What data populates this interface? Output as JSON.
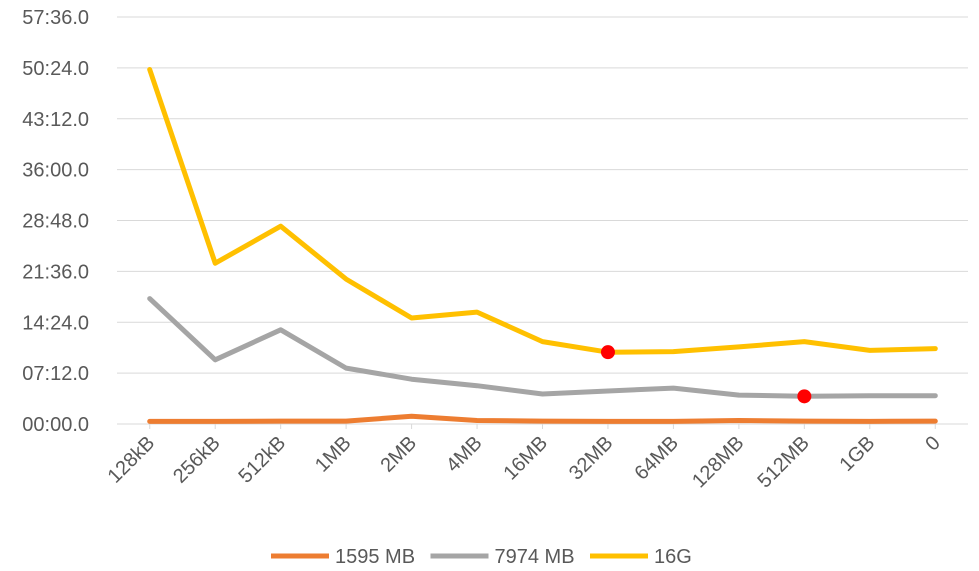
{
  "chart_data": {
    "type": "line",
    "title": "",
    "xlabel": "",
    "ylabel": "",
    "categories": [
      "128kB",
      "256kB",
      "512kB",
      "1MB",
      "2MB",
      "4MB",
      "16MB",
      "32MB",
      "64MB",
      "128MB",
      "512MB",
      "1GB",
      "0"
    ],
    "y_tick_labels": [
      "00:00.0",
      "07:12.0",
      "14:24.0",
      "21:36.0",
      "28:48.0",
      "36:00.0",
      "43:12.0",
      "50:24.0",
      "57:36.0"
    ],
    "ylim_seconds": [
      0,
      3456
    ],
    "y_tick_step_seconds": 432,
    "grid": true,
    "legend_position": "bottom",
    "series": [
      {
        "name": "1595 MB",
        "color": "#ED7D31",
        "values_seconds": [
          22,
          22,
          25,
          25,
          65,
          30,
          25,
          22,
          22,
          30,
          25,
          22,
          25
        ]
      },
      {
        "name": "7974 MB",
        "color": "#A5A5A5",
        "values_seconds": [
          1065,
          545,
          800,
          475,
          380,
          325,
          255,
          280,
          305,
          245,
          235,
          240,
          240
        ]
      },
      {
        "name": "16G",
        "color": "#FFC000",
        "values_seconds": [
          3010,
          1365,
          1680,
          1230,
          900,
          950,
          700,
          610,
          615,
          655,
          700,
          625,
          640
        ]
      }
    ],
    "highlights": [
      {
        "series": "16G",
        "category": "32MB",
        "color": "#FF0000"
      },
      {
        "series": "7974 MB",
        "category": "512MB",
        "color": "#FF0000"
      }
    ]
  }
}
